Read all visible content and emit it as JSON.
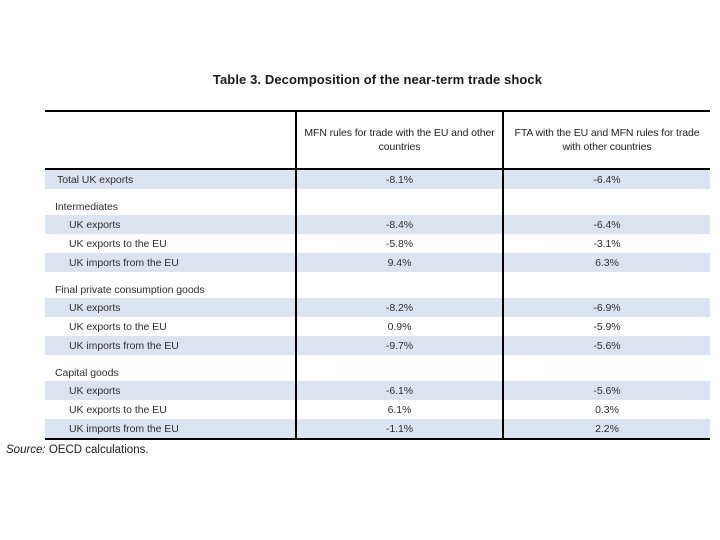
{
  "title": "Table 3. Decomposition of the near-term trade shock",
  "table": {
    "col_headers": [
      "",
      "MFN rules for trade with the EU and other countries",
      "FTA with the EU and MFN rules for trade with other countries"
    ],
    "rows": [
      {
        "type": "total",
        "shaded": true,
        "label": "Total UK exports",
        "mfn": "-8.1%",
        "fta": "-6.4%"
      },
      {
        "type": "group",
        "shaded": false,
        "label": "Intermediates",
        "mfn": "",
        "fta": ""
      },
      {
        "type": "sub",
        "shaded": true,
        "label": "UK exports",
        "mfn": "-8.4%",
        "fta": "-6.4%"
      },
      {
        "type": "sub",
        "shaded": false,
        "label": "UK exports to the EU",
        "mfn": "-5.8%",
        "fta": "-3.1%"
      },
      {
        "type": "sub",
        "shaded": true,
        "label": "UK imports from the EU",
        "mfn": "9.4%",
        "fta": "6.3%"
      },
      {
        "type": "group",
        "shaded": false,
        "label": "Final private consumption goods",
        "mfn": "",
        "fta": ""
      },
      {
        "type": "sub",
        "shaded": true,
        "label": "UK exports",
        "mfn": "-8.2%",
        "fta": "-6.9%"
      },
      {
        "type": "sub",
        "shaded": false,
        "label": "UK exports to the EU",
        "mfn": "0.9%",
        "fta": "-5.9%"
      },
      {
        "type": "sub",
        "shaded": true,
        "label": "UK imports from the EU",
        "mfn": "-9.7%",
        "fta": "-5.6%"
      },
      {
        "type": "group",
        "shaded": false,
        "label": "Capital goods",
        "mfn": "",
        "fta": ""
      },
      {
        "type": "sub",
        "shaded": true,
        "label": "UK exports",
        "mfn": "-6.1%",
        "fta": "-5.6%"
      },
      {
        "type": "sub",
        "shaded": false,
        "label": "UK exports to the EU",
        "mfn": "6.1%",
        "fta": "0.3%"
      },
      {
        "type": "sub",
        "shaded": true,
        "label": "UK imports from the EU",
        "mfn": "-1.1%",
        "fta": "2.2%"
      }
    ]
  },
  "source": {
    "prefix": "Source:",
    "text": " OECD calculations."
  }
}
